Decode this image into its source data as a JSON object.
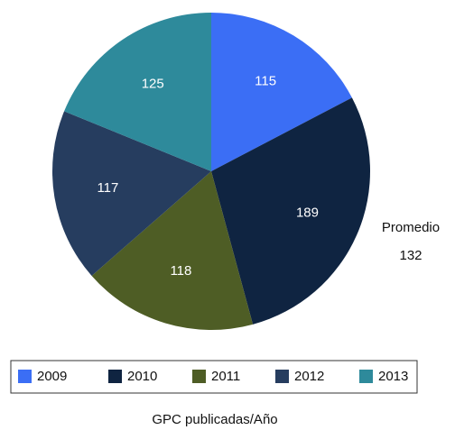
{
  "chart_data": {
    "type": "pie",
    "categories": [
      "2009",
      "2010",
      "2011",
      "2012",
      "2013"
    ],
    "values": [
      115,
      189,
      118,
      117,
      125
    ],
    "colors": [
      "#3b6ef5",
      "#0f2441",
      "#4e5d25",
      "#263d5f",
      "#2e8a9b"
    ],
    "xlabel": "GPC publicadas/Año",
    "annotations": [
      "Promedio",
      "132"
    ],
    "legend": "bottom"
  }
}
